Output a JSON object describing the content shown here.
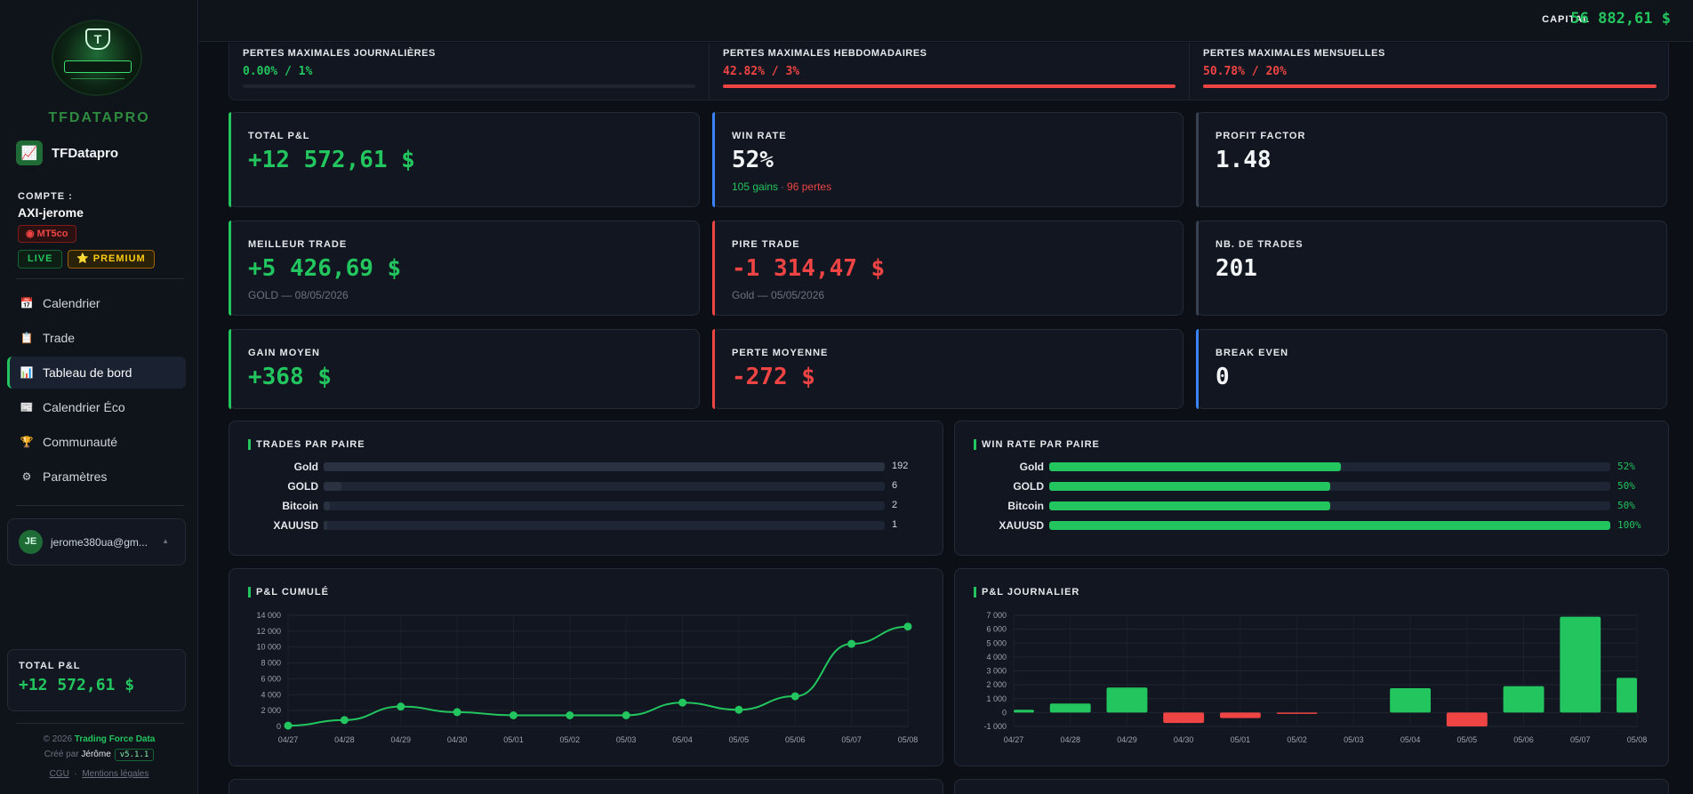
{
  "sidebar": {
    "brand_big": "TFDATAPRO",
    "brand_name": "TFDatapro",
    "account_label": "COMPTE :",
    "account_name": "AXI-jerome",
    "platform_badge": "MT5co",
    "live_badge": "LIVE",
    "premium_badge": "PREMIUM",
    "nav": [
      {
        "label": "Calendrier",
        "icon": "calendar-icon",
        "active": false
      },
      {
        "label": "Trade",
        "icon": "clipboard-icon",
        "active": false
      },
      {
        "label": "Tableau de bord",
        "icon": "bar-chart-icon",
        "active": true
      },
      {
        "label": "Calendrier Éco",
        "icon": "newspaper-icon",
        "active": false
      },
      {
        "label": "Communauté",
        "icon": "trophy-icon",
        "active": false
      },
      {
        "label": "Paramètres",
        "icon": "gear-icon",
        "active": false
      }
    ],
    "user_initials": "JE",
    "user_email": "jerome380ua@gm...",
    "total_label": "TOTAL P&L",
    "total_value": "+12 572,61 $",
    "footer_copy": "© 2026",
    "footer_brand": "Trading Force Data",
    "footer_created": "Créé par",
    "footer_author": "Jérôme",
    "footer_version": "v5.1.1",
    "link_cgu": "CGU",
    "link_sep": "·",
    "link_legal": "Mentions légales"
  },
  "topbar": {
    "capital_label": "CAPITAL",
    "capital_value": "56 882,61 $"
  },
  "losses": [
    {
      "title": "PERTES MAXIMALES JOURNALIÈRES",
      "value": "0.00% / 1%",
      "color": "#22c55e",
      "fill": 0
    },
    {
      "title": "PERTES MAXIMALES HEBDOMADAIRES",
      "value": "42.82% / 3%",
      "color": "#ef4444",
      "fill": 1
    },
    {
      "title": "PERTES MAXIMALES MENSUELLES",
      "value": "50.78% / 20%",
      "color": "#ef4444",
      "fill": 1
    }
  ],
  "stats": [
    {
      "label": "TOTAL P&L",
      "value": "+12 572,61 $",
      "sub": "",
      "color": "#22c55e",
      "accent": "#22c55e"
    },
    {
      "label": "WIN RATE",
      "value": "52%",
      "sub": "",
      "color": "#f3f4f6",
      "accent": "#3b82f6"
    },
    {
      "label": "PROFIT FACTOR",
      "value": "1.48",
      "sub": "",
      "color": "#f3f4f6",
      "accent": "#374151"
    },
    {
      "label": "MEILLEUR TRADE",
      "value": "+5 426,69 $",
      "sub": "GOLD — 08/05/2026",
      "color": "#22c55e",
      "accent": "#22c55e"
    },
    {
      "label": "PIRE TRADE",
      "value": "-1 314,47 $",
      "sub": "Gold — 05/05/2026",
      "color": "#ef4444",
      "accent": "#ef4444"
    },
    {
      "label": "NB. DE TRADES",
      "value": "201",
      "sub": "",
      "color": "#f3f4f6",
      "accent": "#374151"
    },
    {
      "label": "GAIN MOYEN",
      "value": "+368 $",
      "sub": "",
      "color": "#22c55e",
      "accent": "#22c55e"
    },
    {
      "label": "PERTE MOYENNE",
      "value": "-272 $",
      "sub": "",
      "color": "#ef4444",
      "accent": "#ef4444"
    },
    {
      "label": "BREAK EVEN",
      "value": "0",
      "sub": "",
      "color": "#f3f4f6",
      "accent": "#3b82f6"
    }
  ],
  "winrate_detail": {
    "gains": "105 gains",
    "dot": "·",
    "losses": "96 pertes"
  },
  "trades_par_paire": {
    "title": "TRADES PAR PAIRE",
    "rows": [
      {
        "label": "Gold",
        "value": 192,
        "text": "192"
      },
      {
        "label": "GOLD",
        "value": 6,
        "text": "6"
      },
      {
        "label": "Bitcoin",
        "value": 2,
        "text": "2"
      },
      {
        "label": "XAUUSD",
        "value": 1,
        "text": "1"
      }
    ]
  },
  "winrate_par_paire": {
    "title": "WIN RATE PAR PAIRE",
    "rows": [
      {
        "label": "Gold",
        "value": 52,
        "text": "52%"
      },
      {
        "label": "GOLD",
        "value": 50,
        "text": "50%"
      },
      {
        "label": "Bitcoin",
        "value": 50,
        "text": "50%"
      },
      {
        "label": "XAUUSD",
        "value": 100,
        "text": "100%"
      }
    ]
  },
  "chart_data": [
    {
      "type": "line",
      "title": "P&L CUMULÉ",
      "categories": [
        "04/27",
        "04/28",
        "04/29",
        "04/30",
        "05/01",
        "05/02",
        "05/03",
        "05/04",
        "05/05",
        "05/06",
        "05/07",
        "05/08"
      ],
      "values": [
        100,
        800,
        2500,
        1800,
        1400,
        1400,
        1400,
        3000,
        2100,
        3800,
        10400,
        12573
      ],
      "yticks": [
        0,
        2000,
        4000,
        6000,
        8000,
        10000,
        12000,
        14000
      ],
      "ytick_labels": [
        "0",
        "2 000",
        "4 000",
        "6 000",
        "8 000",
        "10 000",
        "12 000",
        "14 000"
      ],
      "ylim": [
        0,
        14000
      ],
      "color": "#22c55e",
      "grid": true
    },
    {
      "type": "bar",
      "title": "P&L JOURNALIER",
      "categories": [
        "04/27",
        "04/28",
        "04/29",
        "04/30",
        "05/01",
        "05/02",
        "05/03",
        "05/04",
        "05/05",
        "05/06",
        "05/07",
        "05/08"
      ],
      "values": [
        200,
        650,
        1800,
        -750,
        -400,
        -80,
        0,
        1750,
        -1000,
        1900,
        6900,
        2500
      ],
      "yticks": [
        -1000,
        0,
        1000,
        2000,
        3000,
        4000,
        5000,
        6000,
        7000
      ],
      "ytick_labels": [
        "-1 000",
        "0",
        "1 000",
        "2 000",
        "3 000",
        "4 000",
        "5 000",
        "6 000",
        "7 000"
      ],
      "ylim": [
        -1000,
        7000
      ],
      "pos_color": "#22c55e",
      "neg_color": "#ef4444",
      "grid": true
    }
  ]
}
